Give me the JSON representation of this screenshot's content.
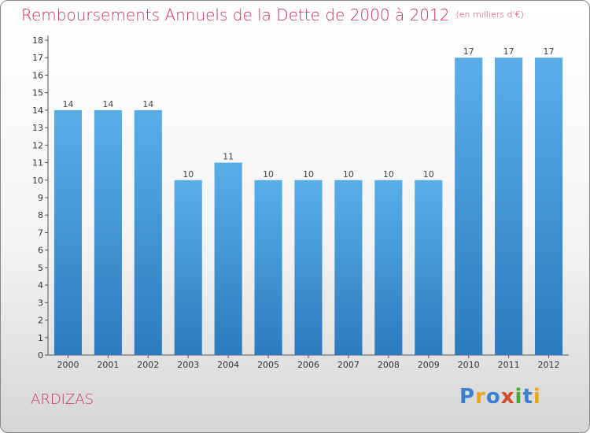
{
  "title": "Remboursements Annuels de la Dette de 2000 à 2012",
  "unit": "(en milliers d'€)",
  "commune": "ARDIZAS",
  "logo": {
    "text": "Proxiti",
    "letters": [
      {
        "char": "P",
        "color": "#3a7fd0"
      },
      {
        "char": "r",
        "color": "#e8a81c"
      },
      {
        "char": "o",
        "color": "#3a7fd0"
      },
      {
        "char": "x",
        "color": "#d04a2a"
      },
      {
        "char": "i",
        "color": "#4aa83a"
      },
      {
        "char": "t",
        "color": "#3a7fd0"
      },
      {
        "char": "i",
        "color": "#e8a81c"
      }
    ]
  },
  "colors": {
    "bar_top": "#5aaee8",
    "bar_bottom": "#2d7bbf",
    "title": "#c8325a"
  },
  "chart_data": {
    "type": "bar",
    "title": "Remboursements Annuels de la Dette de 2000 à 2012",
    "subtitle": "(en milliers d'€)",
    "xlabel": "",
    "ylabel": "",
    "categories": [
      "2000",
      "2001",
      "2002",
      "2003",
      "2004",
      "2005",
      "2006",
      "2007",
      "2008",
      "2009",
      "2010",
      "2011",
      "2012"
    ],
    "values": [
      14,
      14,
      14,
      10,
      11,
      10,
      10,
      10,
      10,
      10,
      17,
      17,
      17
    ],
    "ylim": [
      0,
      18
    ],
    "yticks": [
      0,
      1,
      2,
      3,
      4,
      5,
      6,
      7,
      8,
      9,
      10,
      11,
      12,
      13,
      14,
      15,
      16,
      17,
      18
    ],
    "grid": false,
    "legend": "none",
    "data_labels": true
  }
}
